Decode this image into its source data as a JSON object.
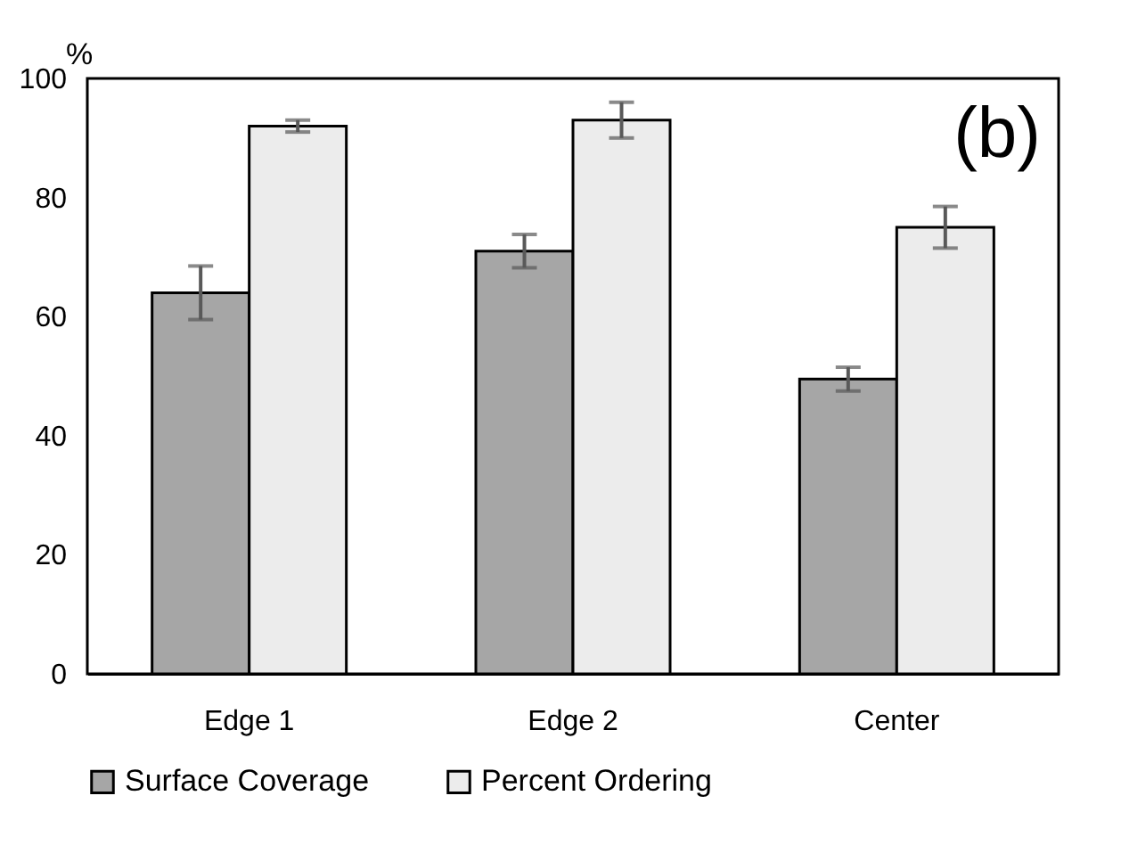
{
  "chart_data": {
    "type": "bar",
    "ylabel": "%",
    "annotations": [
      "(b)"
    ],
    "categories": [
      "Edge 1",
      "Edge 2",
      "Center"
    ],
    "series": [
      {
        "name": "Surface Coverage",
        "color": "#a6a6a6",
        "values": [
          64,
          71,
          49.5
        ],
        "errors": [
          4.5,
          2.8,
          2
        ]
      },
      {
        "name": "Percent Ordering",
        "color": "#ececec",
        "values": [
          92,
          93,
          75
        ],
        "errors": [
          1,
          3,
          3.5
        ]
      }
    ],
    "ylim": [
      0,
      100
    ],
    "yticks": [
      0,
      20,
      40,
      60,
      80,
      100
    ],
    "grid": false,
    "legend": "bottom"
  }
}
